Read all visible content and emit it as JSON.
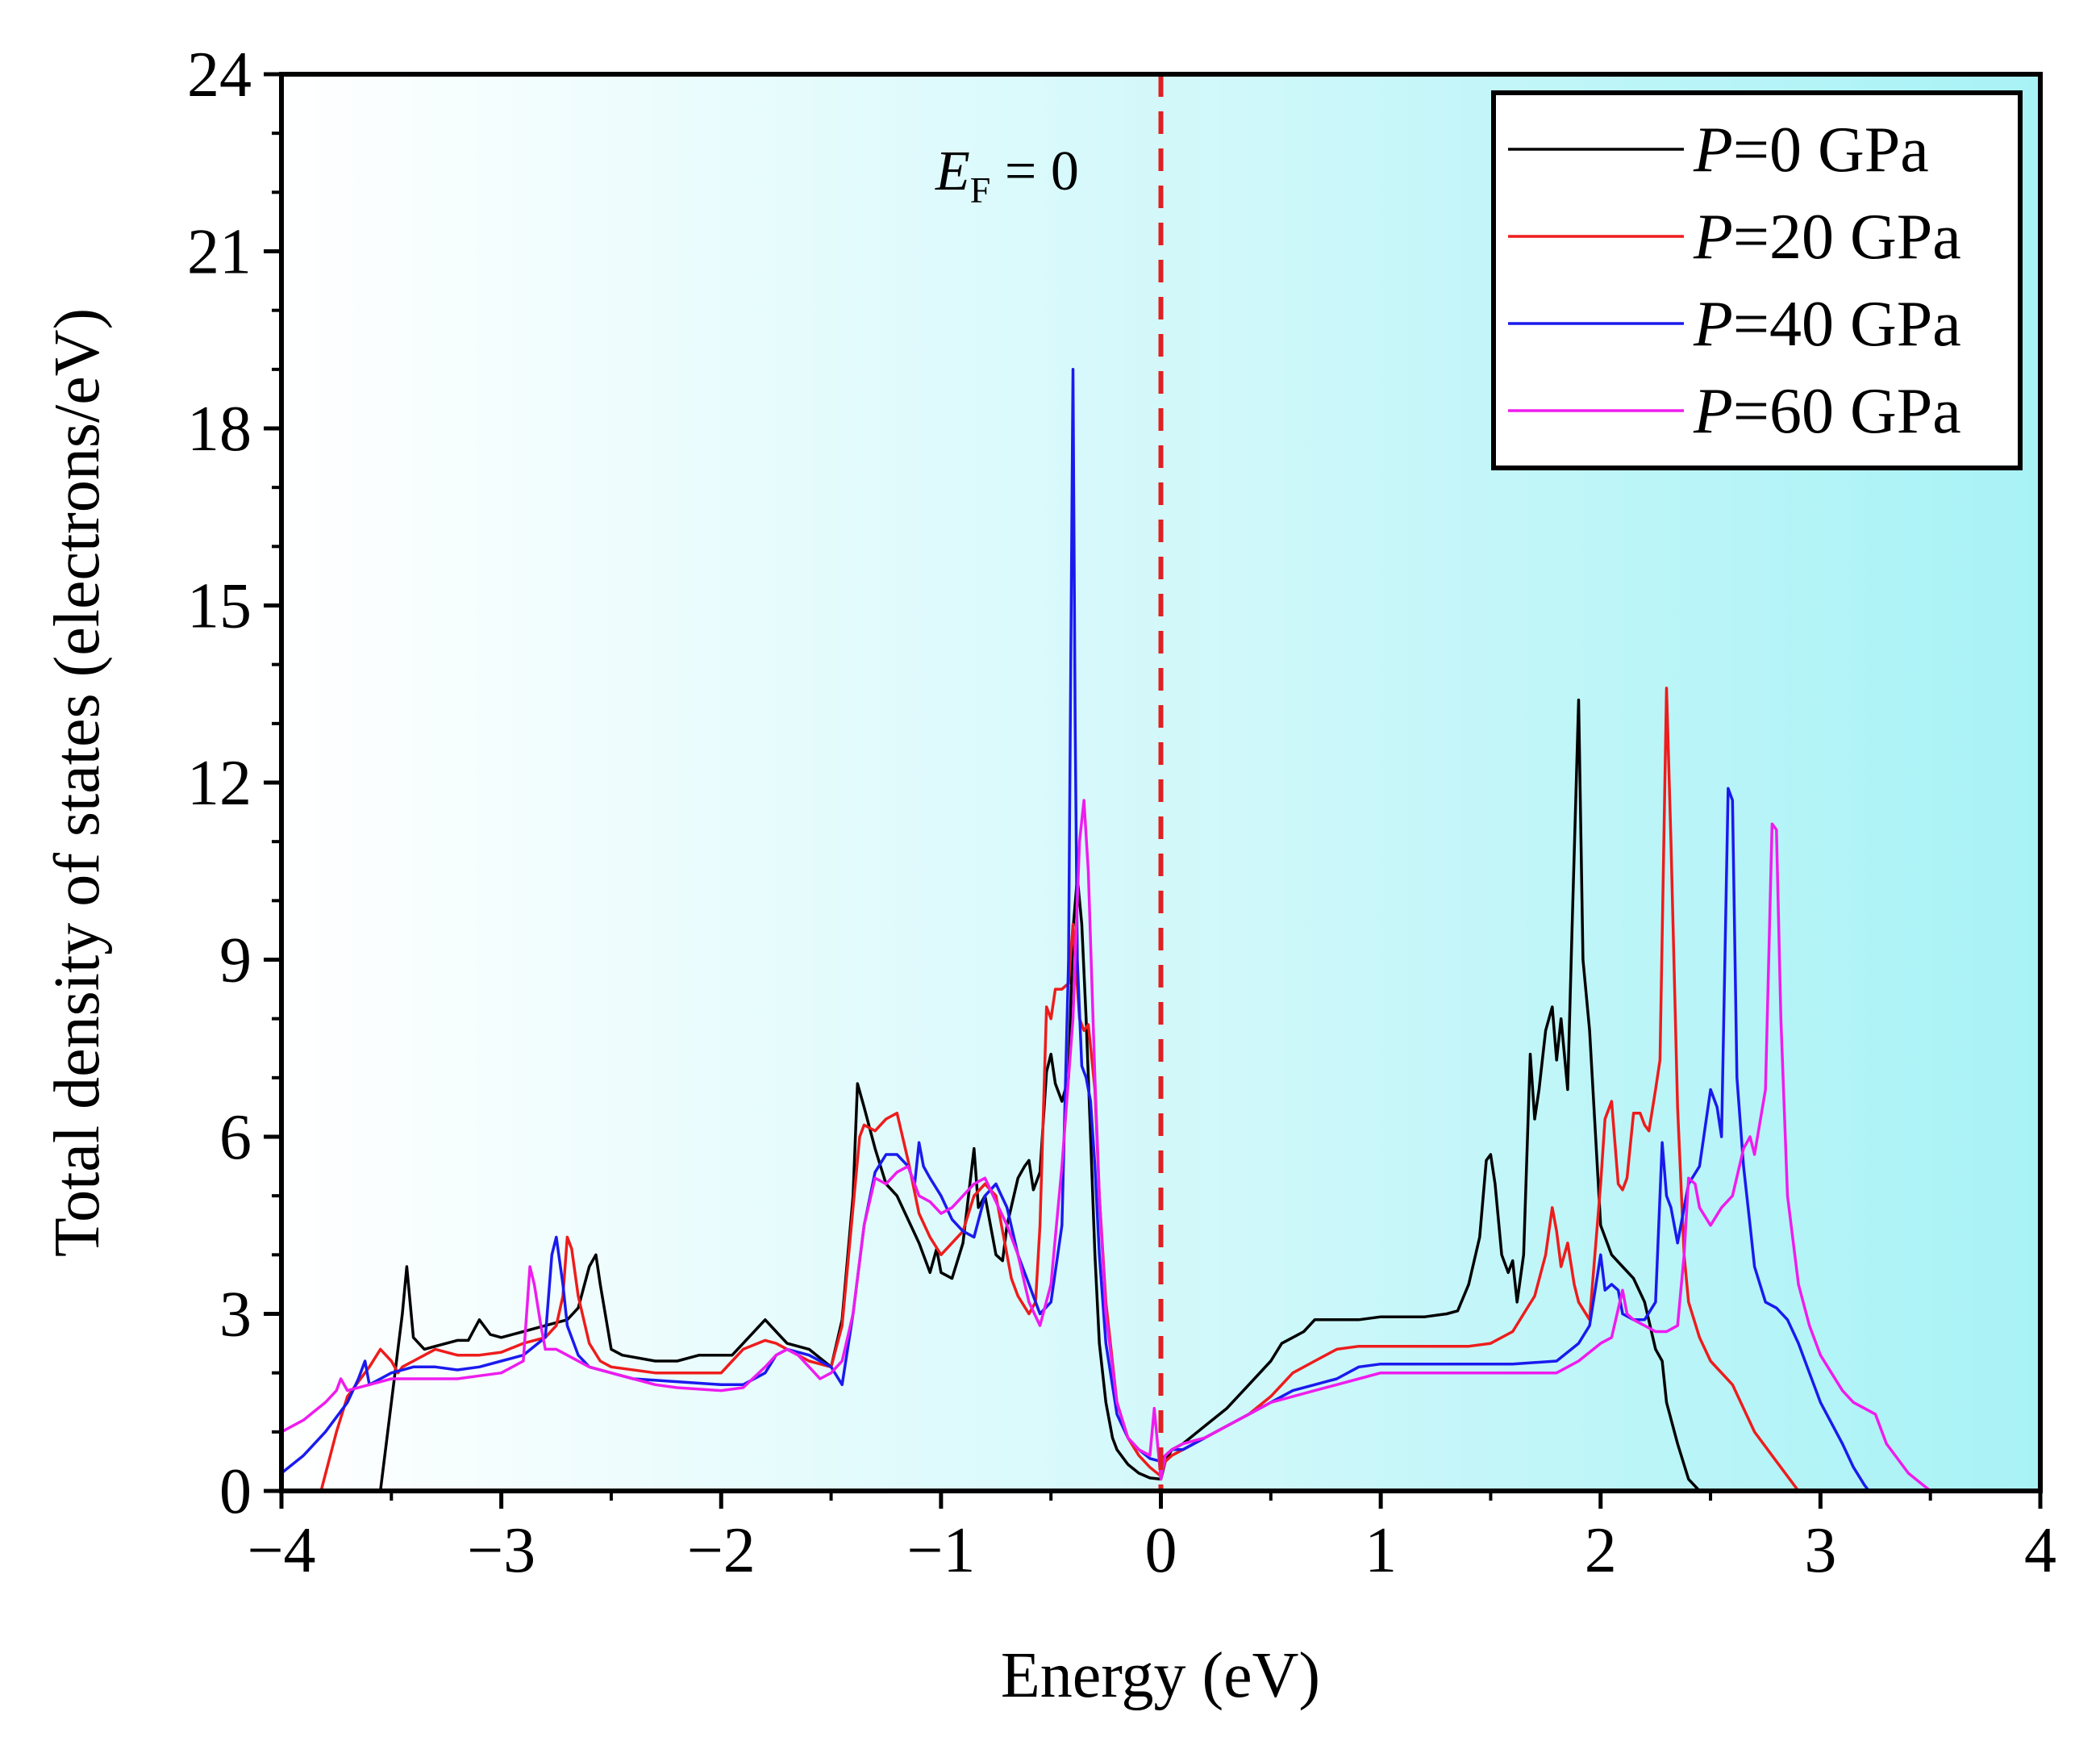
{
  "chart_data": {
    "type": "line",
    "xlabel": "Energy (eV)",
    "ylabel": "Total density of states (electrons/eV)",
    "xlim": [
      -4,
      4
    ],
    "ylim": [
      0,
      24
    ],
    "xticks": [
      -4,
      -3,
      -2,
      -1,
      0,
      1,
      2,
      3,
      4
    ],
    "xtick_labels": [
      "−4",
      "−3",
      "−2",
      "−1",
      "0",
      "1",
      "2",
      "3",
      "4"
    ],
    "yticks": [
      0,
      3,
      6,
      9,
      12,
      15,
      18,
      21,
      24
    ],
    "ytick_labels": [
      "0",
      "3",
      "6",
      "9",
      "12",
      "15",
      "18",
      "21",
      "24"
    ],
    "fermi_level": {
      "x": 0,
      "label_main": "E",
      "label_sub": "F",
      "label_rest": " = 0",
      "color": "#e02020"
    },
    "background": {
      "left": "#ffffff",
      "right": "#a8f2f6"
    },
    "legend_placement": "top-right",
    "series": [
      {
        "name": "P=0 GPa",
        "label_italic": "P",
        "label_rest": "=0 GPa",
        "color": "#000000",
        "x": [
          -3.55,
          -3.5,
          -3.45,
          -3.43,
          -3.4,
          -3.35,
          -3.3,
          -3.2,
          -3.15,
          -3.1,
          -3.05,
          -3.0,
          -2.9,
          -2.8,
          -2.7,
          -2.65,
          -2.6,
          -2.57,
          -2.55,
          -2.5,
          -2.45,
          -2.3,
          -2.2,
          -2.1,
          -2.0,
          -1.95,
          -1.8,
          -1.75,
          -1.7,
          -1.6,
          -1.5,
          -1.45,
          -1.4,
          -1.38,
          -1.35,
          -1.3,
          -1.25,
          -1.2,
          -1.1,
          -1.05,
          -1.02,
          -1.0,
          -0.95,
          -0.9,
          -0.85,
          -0.83,
          -0.8,
          -0.75,
          -0.72,
          -0.7,
          -0.65,
          -0.62,
          -0.6,
          -0.58,
          -0.55,
          -0.52,
          -0.5,
          -0.48,
          -0.45,
          -0.42,
          -0.4,
          -0.38,
          -0.36,
          -0.34,
          -0.32,
          -0.3,
          -0.28,
          -0.25,
          -0.22,
          -0.2,
          -0.15,
          -0.1,
          -0.05,
          0.0,
          0.02,
          0.05,
          0.1,
          0.2,
          0.3,
          0.4,
          0.5,
          0.55,
          0.6,
          0.65,
          0.7,
          0.8,
          0.9,
          1.0,
          1.1,
          1.2,
          1.3,
          1.35,
          1.4,
          1.45,
          1.48,
          1.5,
          1.52,
          1.55,
          1.58,
          1.6,
          1.62,
          1.65,
          1.68,
          1.7,
          1.72,
          1.75,
          1.78,
          1.8,
          1.82,
          1.85,
          1.87,
          1.9,
          1.92,
          1.95,
          2.0,
          2.05,
          2.1,
          2.15,
          2.2,
          2.25,
          2.28,
          2.3,
          2.35,
          2.4,
          2.45,
          2.5,
          2.6
        ],
        "y": [
          0,
          1.5,
          3.0,
          3.8,
          2.6,
          2.4,
          2.45,
          2.55,
          2.55,
          2.9,
          2.65,
          2.6,
          2.7,
          2.8,
          2.9,
          3.1,
          3.8,
          4.0,
          3.5,
          2.4,
          2.3,
          2.2,
          2.2,
          2.3,
          2.3,
          2.3,
          2.9,
          2.7,
          2.5,
          2.4,
          2.1,
          2.9,
          5.0,
          6.9,
          6.5,
          5.8,
          5.2,
          5.0,
          4.2,
          3.7,
          4.1,
          3.7,
          3.6,
          4.2,
          5.8,
          4.8,
          5.0,
          4.0,
          3.9,
          4.5,
          5.3,
          5.5,
          5.6,
          5.1,
          5.4,
          7.1,
          7.4,
          6.9,
          6.6,
          7.0,
          9.5,
          10.4,
          9.6,
          8.0,
          6.0,
          4.0,
          2.5,
          1.5,
          0.9,
          0.7,
          0.45,
          0.3,
          0.22,
          0.2,
          0.5,
          0.7,
          0.8,
          1.1,
          1.4,
          1.8,
          2.2,
          2.5,
          2.6,
          2.7,
          2.9,
          2.9,
          2.9,
          2.95,
          2.95,
          2.95,
          3.0,
          3.05,
          3.5,
          4.3,
          5.6,
          5.7,
          5.2,
          4.0,
          3.7,
          3.9,
          3.2,
          4.0,
          7.4,
          6.3,
          6.8,
          7.8,
          8.2,
          7.3,
          8.0,
          6.8,
          9.5,
          13.4,
          9.0,
          7.8,
          4.5,
          4.0,
          3.8,
          3.6,
          3.2,
          2.4,
          2.2,
          1.5,
          0.8,
          0.2,
          0,
          0,
          0
        ]
      },
      {
        "name": "P=20 GPa",
        "label_italic": "P",
        "label_rest": "=20 GPa",
        "color": "#ee1c1c",
        "x": [
          -3.82,
          -3.75,
          -3.7,
          -3.6,
          -3.55,
          -3.5,
          -3.47,
          -3.45,
          -3.4,
          -3.3,
          -3.2,
          -3.1,
          -3.0,
          -2.9,
          -2.8,
          -2.75,
          -2.72,
          -2.7,
          -2.68,
          -2.65,
          -2.6,
          -2.55,
          -2.5,
          -2.3,
          -2.2,
          -2.0,
          -1.95,
          -1.9,
          -1.8,
          -1.75,
          -1.7,
          -1.6,
          -1.5,
          -1.45,
          -1.4,
          -1.37,
          -1.35,
          -1.3,
          -1.25,
          -1.2,
          -1.15,
          -1.1,
          -1.05,
          -1.0,
          -0.95,
          -0.9,
          -0.85,
          -0.8,
          -0.75,
          -0.7,
          -0.68,
          -0.65,
          -0.6,
          -0.57,
          -0.55,
          -0.52,
          -0.5,
          -0.48,
          -0.45,
          -0.42,
          -0.4,
          -0.37,
          -0.35,
          -0.33,
          -0.3,
          -0.28,
          -0.25,
          -0.2,
          -0.15,
          -0.1,
          -0.05,
          0.0,
          0.02,
          0.05,
          0.1,
          0.2,
          0.3,
          0.4,
          0.5,
          0.6,
          0.7,
          0.8,
          0.9,
          1.0,
          1.2,
          1.4,
          1.5,
          1.6,
          1.65,
          1.7,
          1.75,
          1.78,
          1.8,
          1.82,
          1.85,
          1.88,
          1.9,
          1.95,
          2.0,
          2.02,
          2.05,
          2.08,
          2.1,
          2.12,
          2.15,
          2.18,
          2.2,
          2.22,
          2.25,
          2.27,
          2.3,
          2.32,
          2.35,
          2.38,
          2.4,
          2.45,
          2.5,
          2.6,
          2.7,
          2.8,
          2.9
        ],
        "y": [
          0,
          1.0,
          1.6,
          2.1,
          2.4,
          2.2,
          2.0,
          2.1,
          2.2,
          2.4,
          2.3,
          2.3,
          2.35,
          2.5,
          2.6,
          2.8,
          3.3,
          4.3,
          4.1,
          3.3,
          2.5,
          2.2,
          2.1,
          2.0,
          2.0,
          2.0,
          2.2,
          2.4,
          2.55,
          2.5,
          2.4,
          2.2,
          2.1,
          2.8,
          4.8,
          6.0,
          6.2,
          6.1,
          6.3,
          6.4,
          5.6,
          4.7,
          4.3,
          4.0,
          4.2,
          4.4,
          5.0,
          5.2,
          5.0,
          4.0,
          3.6,
          3.3,
          3.0,
          3.2,
          4.5,
          8.2,
          8.0,
          8.5,
          8.5,
          8.6,
          9.6,
          8.0,
          7.8,
          7.9,
          6.8,
          5.0,
          3.2,
          1.5,
          0.9,
          0.6,
          0.4,
          0.25,
          0.5,
          0.6,
          0.7,
          0.9,
          1.1,
          1.3,
          1.6,
          2.0,
          2.2,
          2.4,
          2.45,
          2.45,
          2.45,
          2.45,
          2.5,
          2.7,
          3.0,
          3.3,
          4.0,
          4.8,
          4.4,
          3.8,
          4.2,
          3.5,
          3.2,
          2.9,
          5.2,
          6.3,
          6.6,
          5.2,
          5.1,
          5.3,
          6.4,
          6.4,
          6.2,
          6.1,
          6.8,
          7.3,
          13.6,
          11.0,
          6.5,
          4.0,
          3.2,
          2.6,
          2.2,
          1.8,
          1.0,
          0.5,
          0
        ]
      },
      {
        "name": "P=40 GPa",
        "label_italic": "P",
        "label_rest": "=40 GPa",
        "color": "#1a1aee",
        "x": [
          -4.0,
          -3.9,
          -3.8,
          -3.7,
          -3.65,
          -3.62,
          -3.6,
          -3.55,
          -3.5,
          -3.4,
          -3.3,
          -3.2,
          -3.1,
          -3.0,
          -2.9,
          -2.8,
          -2.77,
          -2.75,
          -2.72,
          -2.7,
          -2.65,
          -2.6,
          -2.5,
          -2.4,
          -2.2,
          -2.0,
          -1.9,
          -1.8,
          -1.75,
          -1.7,
          -1.6,
          -1.5,
          -1.45,
          -1.4,
          -1.35,
          -1.3,
          -1.25,
          -1.2,
          -1.15,
          -1.12,
          -1.1,
          -1.08,
          -1.05,
          -1.0,
          -0.95,
          -0.9,
          -0.85,
          -0.8,
          -0.75,
          -0.7,
          -0.65,
          -0.6,
          -0.55,
          -0.5,
          -0.45,
          -0.42,
          -0.4,
          -0.39,
          -0.38,
          -0.36,
          -0.34,
          -0.32,
          -0.3,
          -0.28,
          -0.25,
          -0.2,
          -0.15,
          -0.1,
          -0.05,
          0.0,
          0.02,
          0.05,
          0.1,
          0.2,
          0.3,
          0.4,
          0.5,
          0.6,
          0.7,
          0.8,
          0.9,
          1.0,
          1.2,
          1.4,
          1.6,
          1.8,
          1.9,
          1.95,
          2.0,
          2.02,
          2.05,
          2.08,
          2.1,
          2.15,
          2.2,
          2.25,
          2.28,
          2.3,
          2.32,
          2.35,
          2.4,
          2.45,
          2.5,
          2.53,
          2.55,
          2.58,
          2.6,
          2.62,
          2.65,
          2.68,
          2.7,
          2.75,
          2.8,
          2.85,
          2.9,
          2.95,
          3.0,
          3.1,
          3.15,
          3.2,
          3.22
        ],
        "y": [
          0.3,
          0.6,
          1.0,
          1.5,
          1.9,
          2.2,
          1.8,
          1.9,
          2.0,
          2.1,
          2.1,
          2.05,
          2.1,
          2.2,
          2.3,
          2.6,
          4.0,
          4.3,
          3.5,
          2.8,
          2.3,
          2.1,
          2.0,
          1.9,
          1.85,
          1.8,
          1.8,
          2.0,
          2.3,
          2.4,
          2.3,
          2.1,
          1.8,
          3.0,
          4.5,
          5.4,
          5.7,
          5.7,
          5.5,
          5.2,
          5.9,
          5.5,
          5.3,
          5.0,
          4.6,
          4.4,
          4.3,
          5.0,
          5.2,
          4.8,
          4.0,
          3.5,
          3.0,
          3.2,
          4.5,
          9.0,
          19.0,
          13.0,
          9.0,
          7.2,
          7.0,
          6.6,
          5.5,
          4.0,
          2.5,
          1.3,
          0.9,
          0.7,
          0.55,
          0.5,
          0.6,
          0.7,
          0.7,
          0.9,
          1.1,
          1.3,
          1.5,
          1.7,
          1.8,
          1.9,
          2.1,
          2.15,
          2.15,
          2.15,
          2.15,
          2.2,
          2.5,
          2.8,
          4.0,
          3.4,
          3.5,
          3.4,
          3.0,
          2.9,
          2.9,
          3.2,
          5.9,
          5.0,
          4.8,
          4.2,
          5.2,
          5.5,
          6.8,
          6.5,
          6.0,
          11.9,
          11.7,
          7.0,
          5.5,
          4.5,
          3.8,
          3.2,
          3.1,
          2.9,
          2.5,
          2.0,
          1.5,
          0.8,
          0.4,
          0.1,
          0
        ]
      },
      {
        "name": "P=60 GPa",
        "label_italic": "P",
        "label_rest": "=60 GPa",
        "color": "#ee1cee",
        "x": [
          -4.0,
          -3.9,
          -3.8,
          -3.75,
          -3.73,
          -3.7,
          -3.6,
          -3.5,
          -3.4,
          -3.3,
          -3.2,
          -3.1,
          -3.0,
          -2.9,
          -2.87,
          -2.85,
          -2.82,
          -2.8,
          -2.75,
          -2.7,
          -2.6,
          -2.5,
          -2.4,
          -2.3,
          -2.2,
          -2.0,
          -1.9,
          -1.8,
          -1.75,
          -1.7,
          -1.65,
          -1.6,
          -1.55,
          -1.5,
          -1.45,
          -1.4,
          -1.35,
          -1.3,
          -1.25,
          -1.2,
          -1.15,
          -1.1,
          -1.05,
          -1.0,
          -0.95,
          -0.9,
          -0.85,
          -0.8,
          -0.75,
          -0.7,
          -0.65,
          -0.6,
          -0.55,
          -0.5,
          -0.45,
          -0.4,
          -0.37,
          -0.35,
          -0.33,
          -0.3,
          -0.28,
          -0.25,
          -0.2,
          -0.15,
          -0.1,
          -0.05,
          -0.03,
          -0.02,
          0.0,
          0.02,
          0.05,
          0.1,
          0.2,
          0.3,
          0.4,
          0.5,
          0.6,
          0.7,
          0.8,
          0.9,
          1.0,
          1.2,
          1.4,
          1.6,
          1.8,
          1.9,
          2.0,
          2.05,
          2.1,
          2.12,
          2.15,
          2.2,
          2.25,
          2.3,
          2.35,
          2.38,
          2.4,
          2.43,
          2.45,
          2.5,
          2.55,
          2.6,
          2.65,
          2.68,
          2.7,
          2.75,
          2.78,
          2.8,
          2.82,
          2.85,
          2.9,
          2.95,
          3.0,
          3.05,
          3.1,
          3.15,
          3.2,
          3.25,
          3.3,
          3.4,
          3.5
        ],
        "y": [
          1.0,
          1.2,
          1.5,
          1.7,
          1.9,
          1.7,
          1.8,
          1.9,
          1.9,
          1.9,
          1.9,
          1.95,
          2.0,
          2.2,
          3.8,
          3.5,
          2.8,
          2.4,
          2.4,
          2.3,
          2.1,
          2.0,
          1.9,
          1.8,
          1.75,
          1.7,
          1.75,
          2.1,
          2.3,
          2.4,
          2.3,
          2.1,
          1.9,
          2.0,
          2.2,
          3.0,
          4.5,
          5.3,
          5.2,
          5.4,
          5.5,
          5.0,
          4.9,
          4.7,
          4.8,
          5.0,
          5.2,
          5.3,
          4.9,
          4.5,
          4.0,
          3.2,
          2.8,
          3.5,
          5.5,
          8.0,
          11.0,
          11.7,
          10.5,
          7.0,
          5.0,
          3.0,
          1.5,
          0.9,
          0.7,
          0.6,
          1.4,
          1.0,
          0.2,
          0.6,
          0.7,
          0.8,
          0.9,
          1.1,
          1.3,
          1.5,
          1.6,
          1.7,
          1.8,
          1.9,
          2.0,
          2.0,
          2.0,
          2.0,
          2.0,
          2.2,
          2.5,
          2.6,
          3.4,
          3.0,
          2.9,
          2.8,
          2.7,
          2.7,
          2.8,
          4.0,
          5.3,
          5.2,
          4.8,
          4.5,
          4.8,
          5.0,
          5.8,
          6.0,
          5.7,
          6.8,
          11.3,
          11.2,
          8.0,
          5.0,
          3.5,
          2.8,
          2.3,
          2.0,
          1.7,
          1.5,
          1.4,
          1.3,
          0.8,
          0.3,
          0
        ]
      }
    ]
  }
}
